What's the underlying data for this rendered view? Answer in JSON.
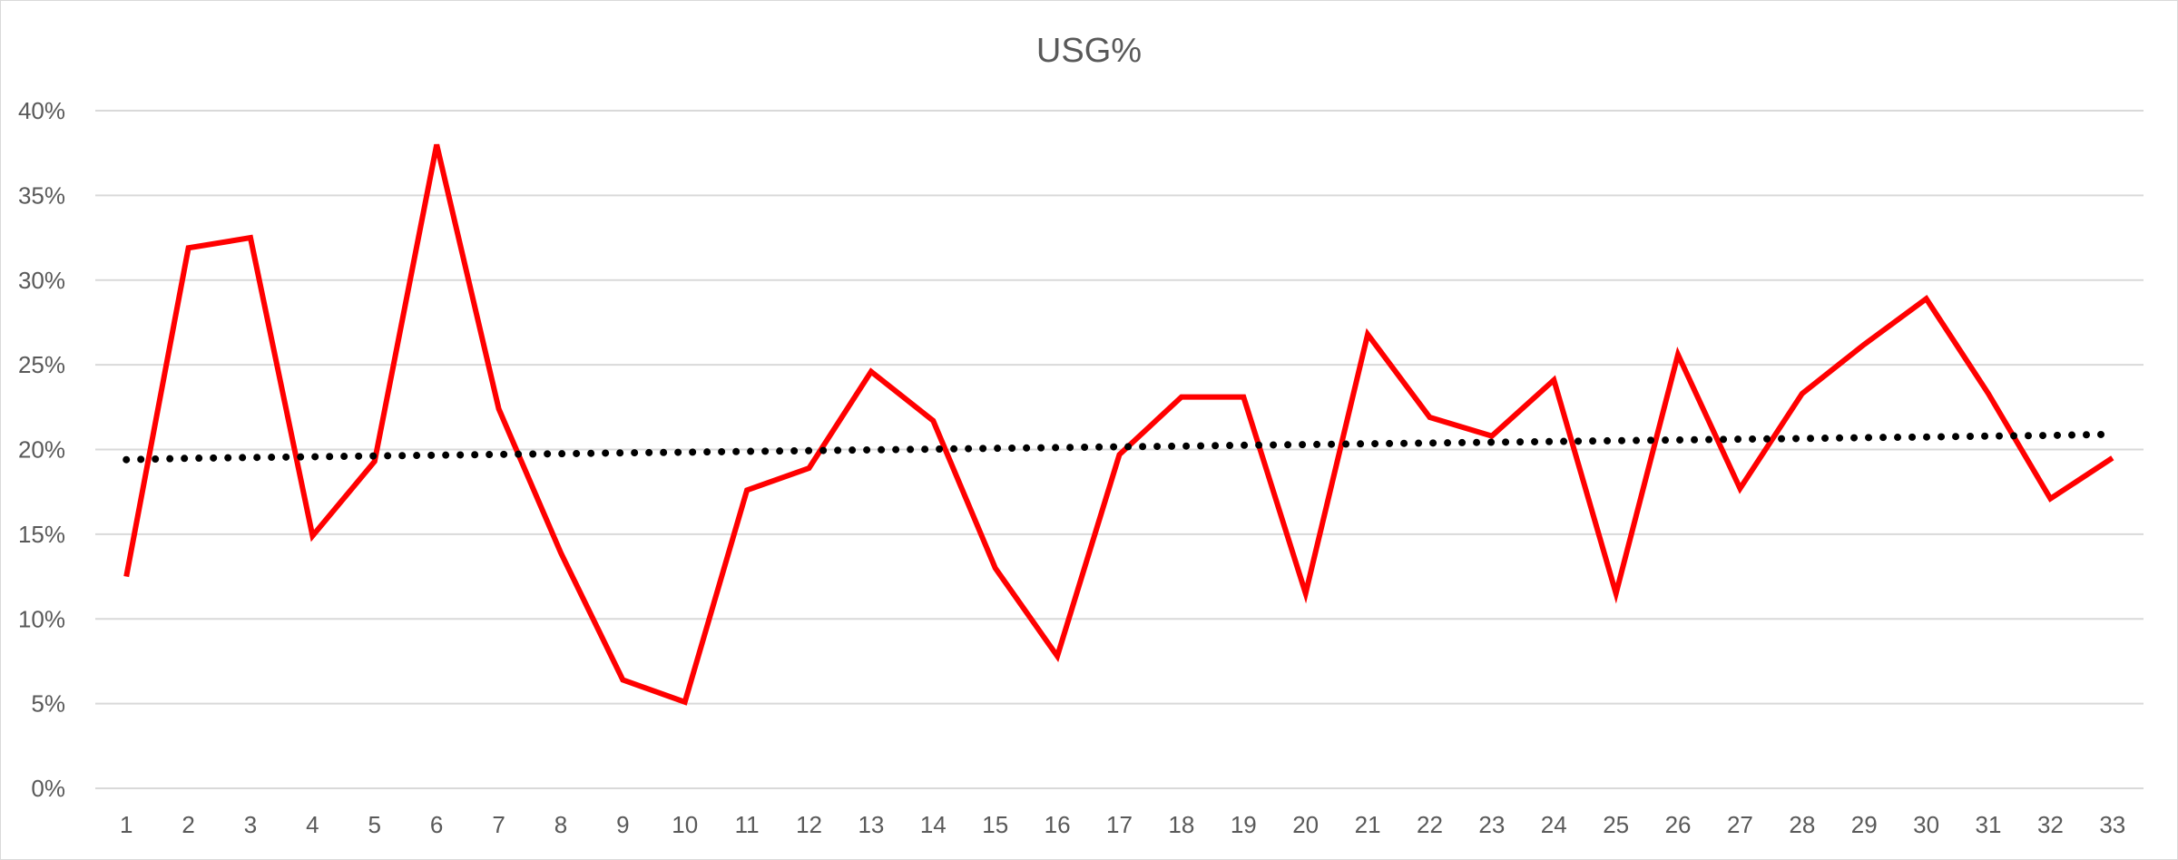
{
  "chart_data": {
    "type": "line",
    "title": "USG%",
    "xlabel": "",
    "ylabel": "",
    "categories": [
      "1",
      "2",
      "3",
      "4",
      "5",
      "6",
      "7",
      "8",
      "9",
      "10",
      "11",
      "12",
      "13",
      "14",
      "15",
      "16",
      "17",
      "18",
      "19",
      "20",
      "21",
      "22",
      "23",
      "24",
      "25",
      "26",
      "27",
      "28",
      "29",
      "30",
      "31",
      "32",
      "33"
    ],
    "ylim": [
      0,
      0.4
    ],
    "yticks": [
      0,
      0.05,
      0.1,
      0.15,
      0.2,
      0.25,
      0.3,
      0.35,
      0.4
    ],
    "ytick_labels": [
      "0%",
      "5%",
      "10%",
      "15%",
      "20%",
      "25%",
      "30%",
      "35%",
      "40%"
    ],
    "grid": true,
    "legend": "none",
    "series": [
      {
        "values": [
          0.125,
          0.319,
          0.325,
          0.149,
          0.193,
          0.38,
          0.224,
          0.139,
          0.064,
          0.051,
          0.176,
          0.189,
          0.246,
          0.217,
          0.13,
          0.078,
          0.197,
          0.231,
          0.231,
          0.115,
          0.268,
          0.219,
          0.208,
          0.241,
          0.115,
          0.256,
          0.177,
          0.233,
          0.262,
          0.289,
          0.233,
          0.171,
          0.195
        ],
        "color": "#ff0000",
        "style": "solid"
      },
      {
        "values": [
          0.194,
          0.1948,
          0.1953,
          0.1957,
          0.1962,
          0.1966,
          0.1971,
          0.1975,
          0.198,
          0.1984,
          0.1989,
          0.1993,
          0.1998,
          0.2002,
          0.2007,
          0.2011,
          0.2016,
          0.202,
          0.2025,
          0.2029,
          0.2034,
          0.2038,
          0.2043,
          0.2047,
          0.2052,
          0.2056,
          0.2061,
          0.2065,
          0.207,
          0.2074,
          0.2079,
          0.2083,
          0.209
        ],
        "color": "#000000",
        "style": "dotted",
        "kind": "trendline"
      }
    ]
  }
}
